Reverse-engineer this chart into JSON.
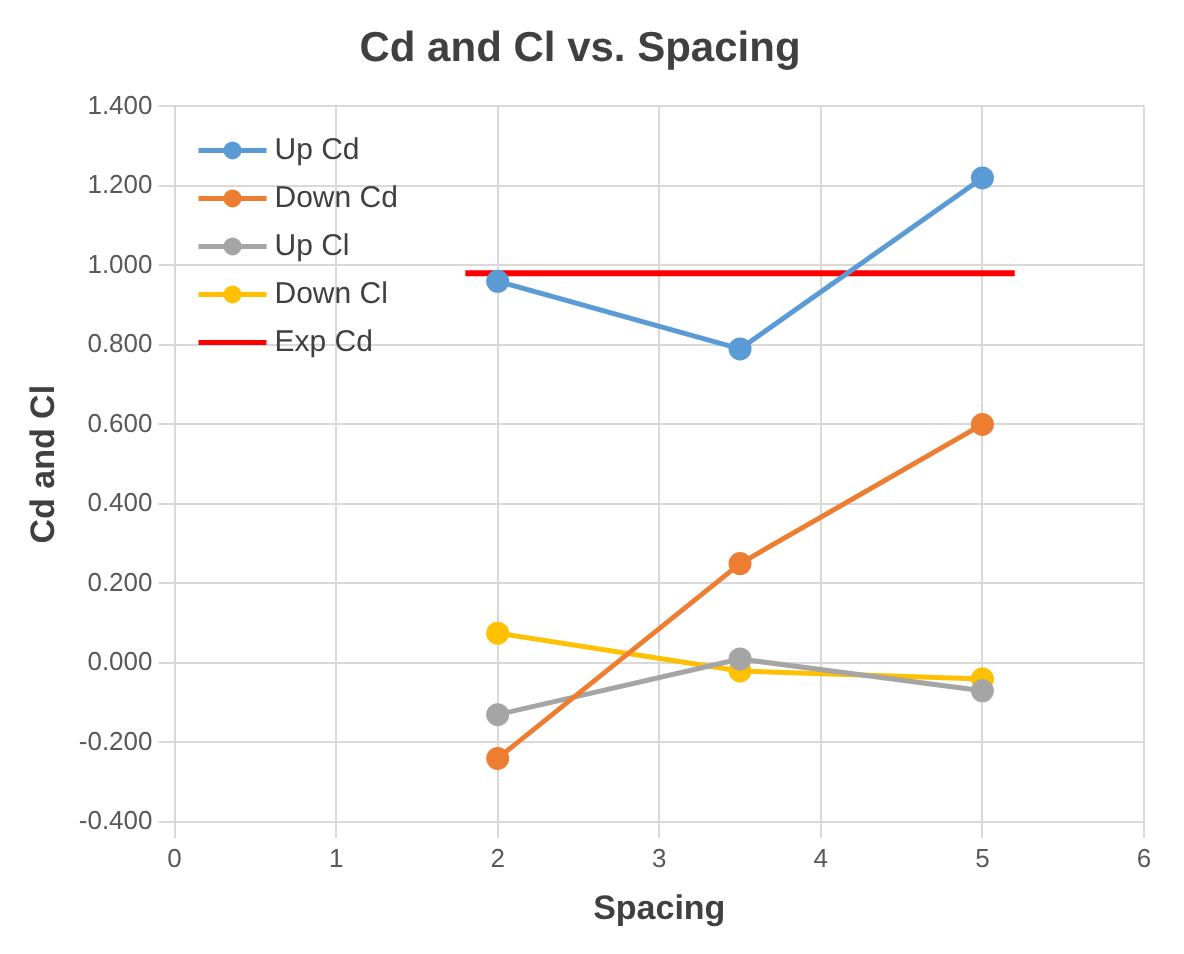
{
  "chart_data": {
    "type": "line",
    "title": "Cd and Cl vs. Spacing",
    "xlabel": "Spacing",
    "ylabel": "Cd and Cl",
    "x": [
      2,
      3.5,
      5
    ],
    "series": [
      {
        "name": "Up Cd",
        "color": "#5b9bd5",
        "values": [
          0.96,
          0.79,
          1.22
        ]
      },
      {
        "name": "Down Cd",
        "color": "#ed7d31",
        "values": [
          -0.24,
          0.25,
          0.6
        ]
      },
      {
        "name": "Up Cl",
        "color": "#a5a5a5",
        "values": [
          -0.13,
          0.01,
          -0.07
        ]
      },
      {
        "name": "Down Cl",
        "color": "#ffc000",
        "values": [
          0.075,
          -0.02,
          -0.04
        ]
      },
      {
        "name": "Exp Cd",
        "color": "#ff0000",
        "x": [
          1.8,
          5.2
        ],
        "values": [
          0.98,
          0.98
        ],
        "marker": "none"
      }
    ],
    "xlim": [
      0,
      6
    ],
    "xticks": [
      0,
      1,
      2,
      3,
      4,
      5,
      6
    ],
    "ylim": [
      -0.4,
      1.4
    ],
    "yticks": [
      {
        "value": -0.4,
        "label": "-0.400"
      },
      {
        "value": -0.2,
        "label": "-0.200"
      },
      {
        "value": 0,
        "label": "0.000"
      },
      {
        "value": 0.2,
        "label": "0.200"
      },
      {
        "value": 0.4,
        "label": "0.400"
      },
      {
        "value": 0.6,
        "label": "0.600"
      },
      {
        "value": 0.8,
        "label": "0.800"
      },
      {
        "value": 1,
        "label": "1.000"
      },
      {
        "value": 1.2,
        "label": "1.200"
      },
      {
        "value": 1.4,
        "label": "1.400"
      }
    ],
    "grid": true,
    "legend": "top left",
    "marker": "circle",
    "line_style": "solid"
  }
}
